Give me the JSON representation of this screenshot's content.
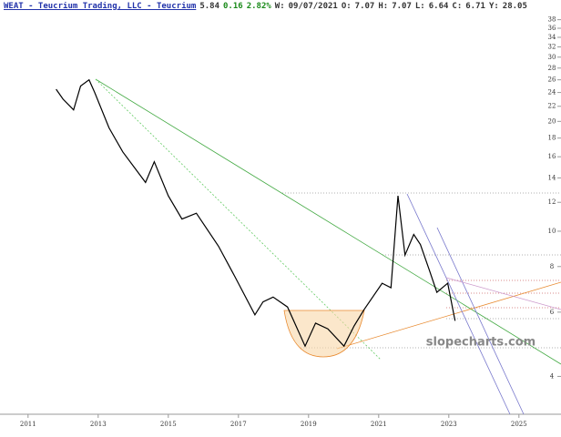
{
  "header": {
    "items": [
      "WEAT - Teucrium Trading, LLC - Teucrium",
      "5.84",
      "0.16",
      "2.82%",
      "W:",
      "09/07/2021",
      "O:",
      "7.07",
      "H:",
      "7.07",
      "L:",
      "6.64",
      "C:",
      "6.71",
      "Y:",
      "28.05"
    ]
  },
  "chart_data": {
    "type": "line",
    "watermark": "slopecharts.com",
    "color": "#000000",
    "x": [
      2011.8,
      2012.0,
      2012.3,
      2012.5,
      2012.74,
      2012.9,
      2013.31,
      2013.7,
      2014.35,
      2014.6,
      2015.0,
      2015.39,
      2015.8,
      2016.43,
      2016.9,
      2017.47,
      2017.7,
      2017.99,
      2018.4,
      2018.9,
      2019.2,
      2019.55,
      2020.01,
      2020.3,
      2020.58,
      2021.1,
      2021.35,
      2021.55,
      2021.75,
      2022.0,
      2022.19,
      2022.45,
      2022.66,
      2022.97,
      2023.18
    ],
    "values": [
      24.5,
      23.0,
      21.5,
      25.0,
      26.0,
      24.0,
      19.2,
      16.5,
      13.6,
      15.5,
      12.5,
      10.8,
      11.2,
      9.1,
      7.5,
      5.9,
      6.4,
      6.6,
      6.2,
      4.84,
      5.6,
      5.4,
      4.84,
      5.5,
      6.09,
      7.2,
      7.0,
      12.5,
      8.6,
      9.8,
      9.2,
      7.8,
      6.8,
      7.2,
      5.68
    ],
    "xlim": [
      2010.2,
      2026.2
    ],
    "xticks": [
      2011,
      2013,
      2015,
      2017,
      2019,
      2021,
      2023,
      2025
    ],
    "ylim": [
      3.15,
      39.7
    ],
    "yticks": [
      4,
      6,
      8,
      10,
      12,
      14,
      16,
      18,
      20,
      22,
      24,
      26,
      28,
      30,
      32,
      34,
      36,
      38
    ],
    "log_y": true
  }
}
